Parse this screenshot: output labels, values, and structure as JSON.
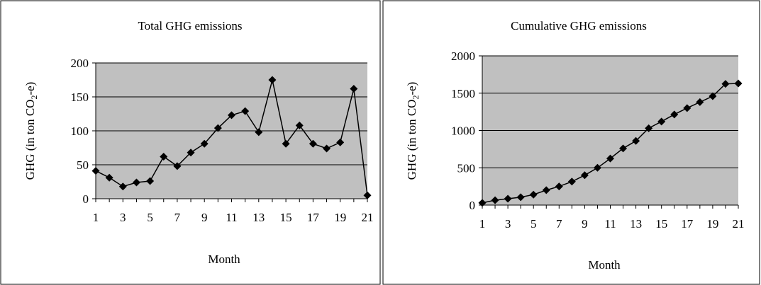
{
  "chart_data": [
    {
      "type": "line",
      "title": "Total GHG emissions",
      "xlabel": "Month",
      "ylabel_main": "GHG (in ton CO",
      "ylabel_sub": "2",
      "ylabel_tail": "-e)",
      "ylim": [
        0,
        200
      ],
      "yticks": [
        0,
        50,
        100,
        150,
        200
      ],
      "xticks": [
        1,
        3,
        5,
        7,
        9,
        11,
        13,
        15,
        17,
        19,
        21
      ],
      "x": [
        1,
        2,
        3,
        4,
        5,
        6,
        7,
        8,
        9,
        10,
        11,
        12,
        13,
        14,
        15,
        16,
        17,
        18,
        19,
        20,
        21
      ],
      "series": [
        {
          "values": [
            41,
            31,
            18,
            24,
            26,
            62,
            48,
            68,
            81,
            104,
            123,
            129,
            98,
            175,
            81,
            108,
            81,
            74,
            83,
            162,
            5
          ]
        }
      ],
      "grid": true,
      "colors": {
        "plot_bg": "#c0c0c0",
        "line": "#000000",
        "marker": "#000000"
      }
    },
    {
      "type": "line",
      "title": "Cumulative GHG emissions",
      "xlabel": "Month",
      "ylabel_main": "GHG (in ton CO",
      "ylabel_sub": "2",
      "ylabel_tail": "-e)",
      "ylim": [
        0,
        2000
      ],
      "yticks": [
        0,
        500,
        1000,
        1500,
        2000
      ],
      "xticks": [
        1,
        3,
        5,
        7,
        9,
        11,
        13,
        15,
        17,
        19,
        21
      ],
      "x": [
        1,
        2,
        3,
        4,
        5,
        6,
        7,
        8,
        9,
        10,
        11,
        12,
        13,
        14,
        15,
        16,
        17,
        18,
        19,
        20,
        21
      ],
      "series": [
        {
          "values": [
            30,
            65,
            85,
            105,
            140,
            200,
            250,
            315,
            400,
            500,
            625,
            760,
            860,
            1030,
            1120,
            1215,
            1300,
            1380,
            1460,
            1625,
            1630
          ]
        }
      ],
      "grid": true,
      "colors": {
        "plot_bg": "#c0c0c0",
        "line": "#000000",
        "marker": "#000000"
      }
    }
  ]
}
